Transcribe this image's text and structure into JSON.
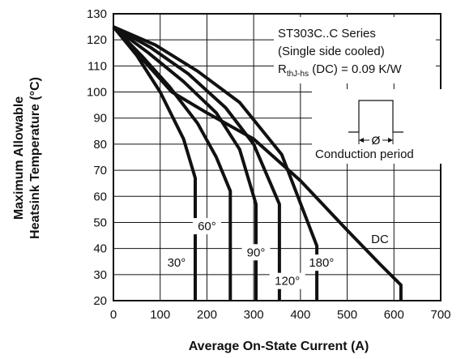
{
  "chart_data": {
    "type": "line",
    "title": "",
    "xlabel": "Average On-State Current (A)",
    "ylabel_line1": "Maximum Allowable",
    "ylabel_line2": "Heatsink Temperature (°C)",
    "xlim": [
      0,
      700
    ],
    "ylim": [
      20,
      130
    ],
    "x_ticks": [
      0,
      100,
      200,
      300,
      400,
      500,
      600,
      700
    ],
    "y_ticks": [
      20,
      30,
      40,
      50,
      60,
      70,
      80,
      90,
      100,
      110,
      120,
      130
    ],
    "grid": true,
    "annotation": {
      "line1": "ST303C..C Series",
      "line2": "(Single side cooled)",
      "r_main": "R",
      "r_sub": "thJ-hs",
      "r_rest": " (DC) = 0.09 K/W",
      "diagram_symbol": "Ø",
      "diagram_caption": "Conduction period"
    },
    "series": [
      {
        "name": "30°",
        "points": [
          [
            0,
            125
          ],
          [
            50,
            114
          ],
          [
            100,
            100
          ],
          [
            150,
            82
          ],
          [
            175,
            67
          ],
          [
            175,
            20
          ]
        ]
      },
      {
        "name": "60°",
        "points": [
          [
            0,
            125
          ],
          [
            60,
            114
          ],
          [
            120,
            102
          ],
          [
            180,
            88
          ],
          [
            220,
            75
          ],
          [
            250,
            62
          ],
          [
            250,
            20
          ]
        ]
      },
      {
        "name": "90°",
        "points": [
          [
            0,
            125
          ],
          [
            75,
            115
          ],
          [
            150,
            104
          ],
          [
            220,
            92
          ],
          [
            270,
            78
          ],
          [
            305,
            57
          ],
          [
            305,
            20
          ]
        ]
      },
      {
        "name": "120°",
        "points": [
          [
            0,
            125
          ],
          [
            80,
            117
          ],
          [
            160,
            107
          ],
          [
            240,
            94
          ],
          [
            300,
            80
          ],
          [
            355,
            57
          ],
          [
            355,
            20
          ]
        ]
      },
      {
        "name": "180°",
        "points": [
          [
            0,
            125
          ],
          [
            90,
            118
          ],
          [
            180,
            108
          ],
          [
            270,
            96
          ],
          [
            360,
            76
          ],
          [
            435,
            41
          ],
          [
            435,
            20
          ]
        ]
      },
      {
        "name": "DC",
        "points": [
          [
            0,
            125
          ],
          [
            60,
            113
          ],
          [
            125,
            100
          ],
          [
            200,
            92
          ],
          [
            300,
            82
          ],
          [
            400,
            66
          ],
          [
            500,
            47
          ],
          [
            570,
            34
          ],
          [
            615,
            26
          ],
          [
            615,
            20
          ]
        ]
      }
    ],
    "series_labels": [
      {
        "text": "30°",
        "x": 135,
        "y": 33
      },
      {
        "text": "60°",
        "x": 200,
        "y": 47
      },
      {
        "text": "90°",
        "x": 305,
        "y": 37
      },
      {
        "text": "120°",
        "x": 372,
        "y": 26
      },
      {
        "text": "180°",
        "x": 445,
        "y": 33
      },
      {
        "text": "DC",
        "x": 570,
        "y": 42
      }
    ]
  }
}
